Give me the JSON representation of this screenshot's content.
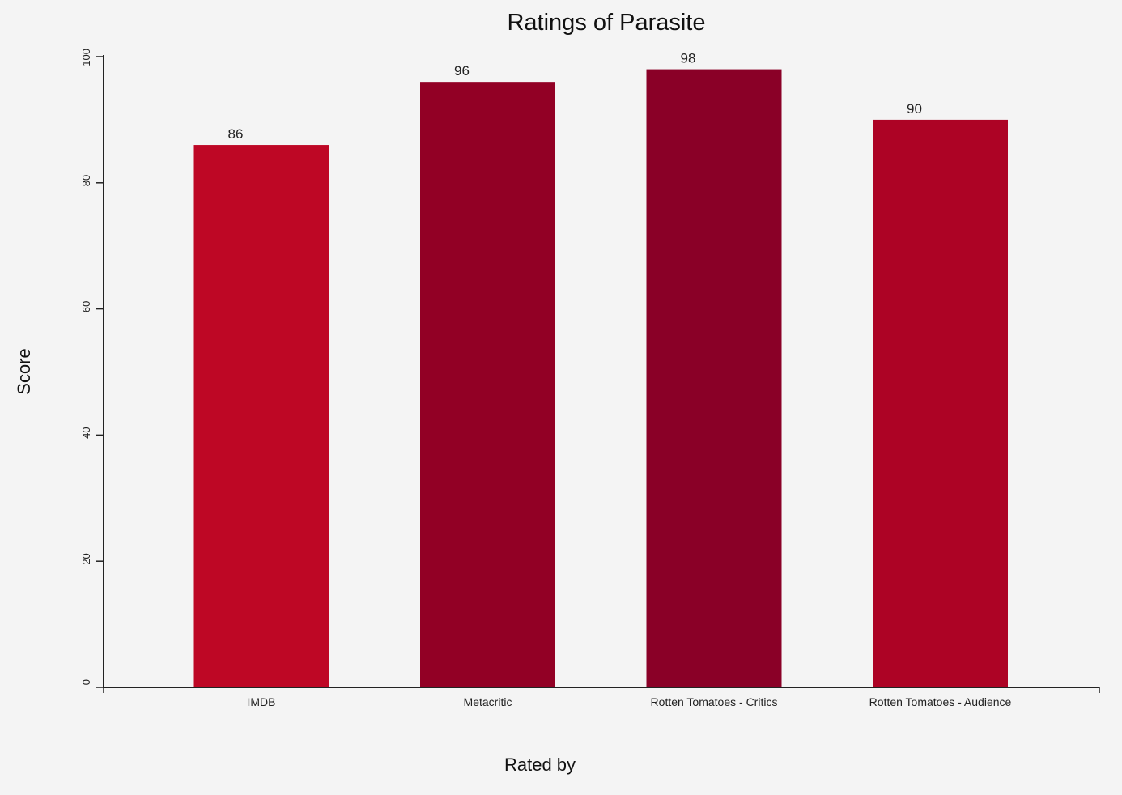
{
  "chart_data": {
    "type": "bar",
    "title": "Ratings of Parasite",
    "xlabel": "Rated by",
    "ylabel": "Score",
    "categories": [
      "IMDB",
      "Metacritic",
      "Rotten Tomatoes - Critics",
      "Rotten Tomatoes - Audience"
    ],
    "values": [
      86,
      96,
      98,
      90
    ],
    "colors": [
      "#be0725",
      "#920025",
      "#8a0027",
      "#ad0325"
    ],
    "ylim": [
      0,
      100
    ],
    "yticks": [
      0,
      20,
      40,
      60,
      80,
      100
    ],
    "grid": false,
    "legend": "none",
    "background": "#f4f4f4"
  }
}
